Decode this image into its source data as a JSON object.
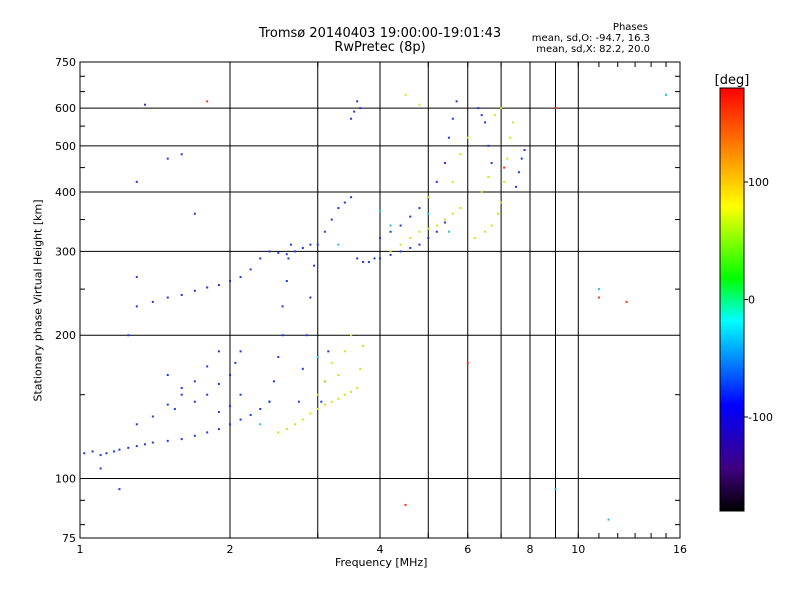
{
  "header": {
    "title_line1": "Tromsø 20140403 19:00:00-19:01:43",
    "title_line2": "RwPretec (8p)",
    "stats_heading": "Phases",
    "stats_o": "mean, sd,O: -94.7, 16.3",
    "stats_x": "mean, sd,X:  82.2, 20.0"
  },
  "chart_data": {
    "type": "scatter",
    "xlabel": "Frequency [MHz]",
    "ylabel": "Stationary phase Virtual Height [km]",
    "x_scale": "log",
    "y_scale": "log",
    "xlim": [
      1,
      16
    ],
    "ylim": [
      75,
      750
    ],
    "x_ticks": [
      1,
      2,
      4,
      6,
      8,
      10,
      16
    ],
    "x_ticks_minor": [
      3,
      5,
      7,
      9
    ],
    "y_ticks": [
      75,
      100,
      200,
      300,
      400,
      500,
      600,
      750
    ],
    "grid": true,
    "colorbar": {
      "label": "[deg]",
      "range": [
        -180,
        180
      ],
      "ticks": [
        100,
        0,
        -100
      ],
      "colors": [
        "#ff0000",
        "#ff8000",
        "#ffff00",
        "#00ff00",
        "#00ffff",
        "#0000ff",
        "#400080",
        "#000000"
      ]
    },
    "series": [
      {
        "phase": -100,
        "color": "#1838e0",
        "points": [
          [
            1.02,
            113
          ],
          [
            1.06,
            114
          ],
          [
            1.1,
            112
          ],
          [
            1.13,
            113
          ],
          [
            1.17,
            114
          ],
          [
            1.2,
            115
          ],
          [
            1.25,
            116
          ],
          [
            1.3,
            117
          ],
          [
            1.35,
            118
          ],
          [
            1.4,
            119
          ],
          [
            1.5,
            120
          ],
          [
            1.6,
            121
          ],
          [
            1.7,
            123
          ],
          [
            1.8,
            125
          ],
          [
            1.9,
            127
          ],
          [
            2.0,
            130
          ],
          [
            2.1,
            133
          ],
          [
            2.2,
            136
          ],
          [
            2.3,
            140
          ],
          [
            2.4,
            145
          ],
          [
            1.3,
            130
          ],
          [
            1.4,
            135
          ],
          [
            1.5,
            143
          ],
          [
            1.6,
            150
          ],
          [
            1.7,
            160
          ],
          [
            1.8,
            172
          ],
          [
            1.9,
            185
          ],
          [
            1.55,
            140
          ],
          [
            1.7,
            145
          ],
          [
            1.8,
            150
          ],
          [
            1.9,
            158
          ],
          [
            2.0,
            165
          ],
          [
            2.05,
            175
          ],
          [
            2.1,
            185
          ],
          [
            1.9,
            138
          ],
          [
            2.0,
            142
          ],
          [
            2.1,
            150
          ],
          [
            2.4,
            145
          ],
          [
            2.45,
            160
          ],
          [
            2.5,
            180
          ],
          [
            2.55,
            200
          ],
          [
            2.55,
            230
          ],
          [
            2.6,
            260
          ],
          [
            2.62,
            290
          ],
          [
            2.65,
            310
          ],
          [
            2.75,
            145
          ],
          [
            2.8,
            170
          ],
          [
            2.85,
            200
          ],
          [
            2.9,
            240
          ],
          [
            2.95,
            280
          ],
          [
            3.0,
            310
          ],
          [
            3.05,
            145
          ],
          [
            3.1,
            160
          ],
          [
            3.15,
            185
          ],
          [
            1.3,
            230
          ],
          [
            1.4,
            235
          ],
          [
            1.5,
            240
          ],
          [
            1.6,
            243
          ],
          [
            1.7,
            248
          ],
          [
            1.8,
            252
          ],
          [
            1.9,
            255
          ],
          [
            2.0,
            260
          ],
          [
            2.1,
            265
          ],
          [
            2.2,
            275
          ],
          [
            2.3,
            290
          ],
          [
            2.4,
            300
          ],
          [
            2.5,
            298
          ],
          [
            2.6,
            296
          ],
          [
            2.7,
            300
          ],
          [
            2.8,
            305
          ],
          [
            2.9,
            310
          ],
          [
            3.1,
            330
          ],
          [
            3.2,
            350
          ],
          [
            3.3,
            370
          ],
          [
            3.4,
            380
          ],
          [
            3.5,
            390
          ],
          [
            3.6,
            290
          ],
          [
            3.7,
            285
          ],
          [
            3.8,
            285
          ],
          [
            3.9,
            290
          ],
          [
            4.0,
            290
          ],
          [
            4.2,
            295
          ],
          [
            4.4,
            300
          ],
          [
            4.6,
            305
          ],
          [
            4.8,
            310
          ],
          [
            5.0,
            320
          ],
          [
            5.2,
            330
          ],
          [
            5.4,
            345
          ],
          [
            4.0,
            320
          ],
          [
            4.2,
            330
          ],
          [
            4.4,
            340
          ],
          [
            4.6,
            355
          ],
          [
            4.8,
            370
          ],
          [
            5.0,
            390
          ],
          [
            5.2,
            420
          ],
          [
            5.4,
            460
          ],
          [
            5.5,
            520
          ],
          [
            5.6,
            570
          ],
          [
            5.7,
            620
          ],
          [
            3.5,
            570
          ],
          [
            3.55,
            590
          ],
          [
            3.6,
            620
          ],
          [
            3.65,
            600
          ],
          [
            6.3,
            600
          ],
          [
            6.4,
            580
          ],
          [
            6.5,
            560
          ],
          [
            6.6,
            500
          ],
          [
            6.7,
            460
          ],
          [
            7.5,
            410
          ],
          [
            7.6,
            440
          ],
          [
            7.7,
            470
          ],
          [
            7.8,
            490
          ],
          [
            1.3,
            420
          ],
          [
            1.35,
            610
          ],
          [
            1.5,
            470
          ],
          [
            1.6,
            480
          ],
          [
            1.7,
            360
          ],
          [
            1.1,
            105
          ],
          [
            1.2,
            95
          ],
          [
            1.25,
            200
          ],
          [
            1.3,
            265
          ],
          [
            1.5,
            165
          ],
          [
            1.6,
            155
          ]
        ]
      },
      {
        "phase": 110,
        "color": "#c8e81a",
        "points": [
          [
            2.5,
            125
          ],
          [
            2.6,
            127
          ],
          [
            2.7,
            130
          ],
          [
            2.8,
            133
          ],
          [
            2.9,
            137
          ],
          [
            3.0,
            140
          ],
          [
            3.1,
            143
          ],
          [
            3.2,
            145
          ],
          [
            3.3,
            147
          ],
          [
            3.4,
            150
          ],
          [
            3.5,
            152
          ],
          [
            3.6,
            155
          ],
          [
            3.65,
            170
          ],
          [
            3.7,
            190
          ],
          [
            3.0,
            150
          ],
          [
            3.1,
            160
          ],
          [
            3.2,
            175
          ],
          [
            3.3,
            165
          ],
          [
            3.4,
            185
          ],
          [
            3.5,
            200
          ],
          [
            4.2,
            300
          ],
          [
            4.4,
            310
          ],
          [
            4.6,
            320
          ],
          [
            4.8,
            330
          ],
          [
            5.0,
            335
          ],
          [
            5.2,
            340
          ],
          [
            5.4,
            350
          ],
          [
            5.6,
            360
          ],
          [
            5.8,
            370
          ],
          [
            5.6,
            420
          ],
          [
            5.8,
            480
          ],
          [
            6.0,
            520
          ],
          [
            6.5,
            330
          ],
          [
            6.7,
            340
          ],
          [
            6.9,
            360
          ],
          [
            7.0,
            380
          ],
          [
            7.1,
            420
          ],
          [
            7.2,
            470
          ],
          [
            7.3,
            520
          ],
          [
            7.4,
            560
          ],
          [
            7.0,
            600
          ],
          [
            6.8,
            580
          ],
          [
            4.5,
            640
          ],
          [
            4.8,
            610
          ],
          [
            5.0,
            390
          ],
          [
            6.2,
            320
          ],
          [
            6.4,
            400
          ],
          [
            6.6,
            430
          ]
        ]
      },
      {
        "phase": 20,
        "color": "#22c0e0",
        "points": [
          [
            2.3,
            130
          ],
          [
            3.0,
            180
          ],
          [
            3.3,
            310
          ],
          [
            4.0,
            365
          ],
          [
            4.2,
            340
          ],
          [
            5.0,
            360
          ],
          [
            5.5,
            330
          ],
          [
            11.0,
            250
          ],
          [
            15.0,
            640
          ],
          [
            11.5,
            82
          ],
          [
            9.0,
            95
          ]
        ]
      },
      {
        "phase": 160,
        "color": "#ff3010",
        "points": [
          [
            1.8,
            620
          ],
          [
            4.5,
            88
          ],
          [
            6.0,
            175
          ],
          [
            7.1,
            450
          ],
          [
            9.0,
            600
          ],
          [
            11.0,
            240
          ],
          [
            12.5,
            235
          ]
        ]
      }
    ]
  }
}
